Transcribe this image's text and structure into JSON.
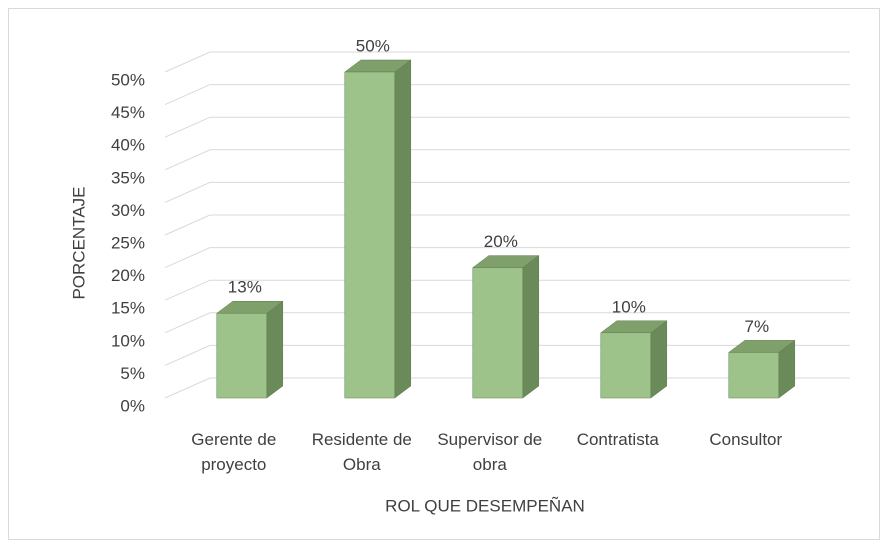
{
  "chart_data": {
    "type": "bar3d",
    "categories": [
      "Gerente de proyecto",
      "Residente de Obra",
      "Supervisor de obra",
      "Contratista",
      "Consultor"
    ],
    "values": [
      13,
      50,
      20,
      10,
      7
    ],
    "value_labels": [
      "13%",
      "50%",
      "20%",
      "10%",
      "7%"
    ],
    "color": "#9dc38a",
    "ylim": [
      0,
      50
    ],
    "yticks": [
      {
        "value": 0,
        "label": "0%"
      },
      {
        "value": 5,
        "label": "5%"
      },
      {
        "value": 10,
        "label": "10%"
      },
      {
        "value": 15,
        "label": "15%"
      },
      {
        "value": 20,
        "label": "20%"
      },
      {
        "value": 25,
        "label": "25%"
      },
      {
        "value": 30,
        "label": "30%"
      },
      {
        "value": 35,
        "label": "35%"
      },
      {
        "value": 40,
        "label": "40%"
      },
      {
        "value": 45,
        "label": "45%"
      },
      {
        "value": 50,
        "label": "50%"
      }
    ],
    "y_label": "PORCENTAJE",
    "x_label": "ROL QUE DESEMPEÑAN",
    "grid": true
  }
}
